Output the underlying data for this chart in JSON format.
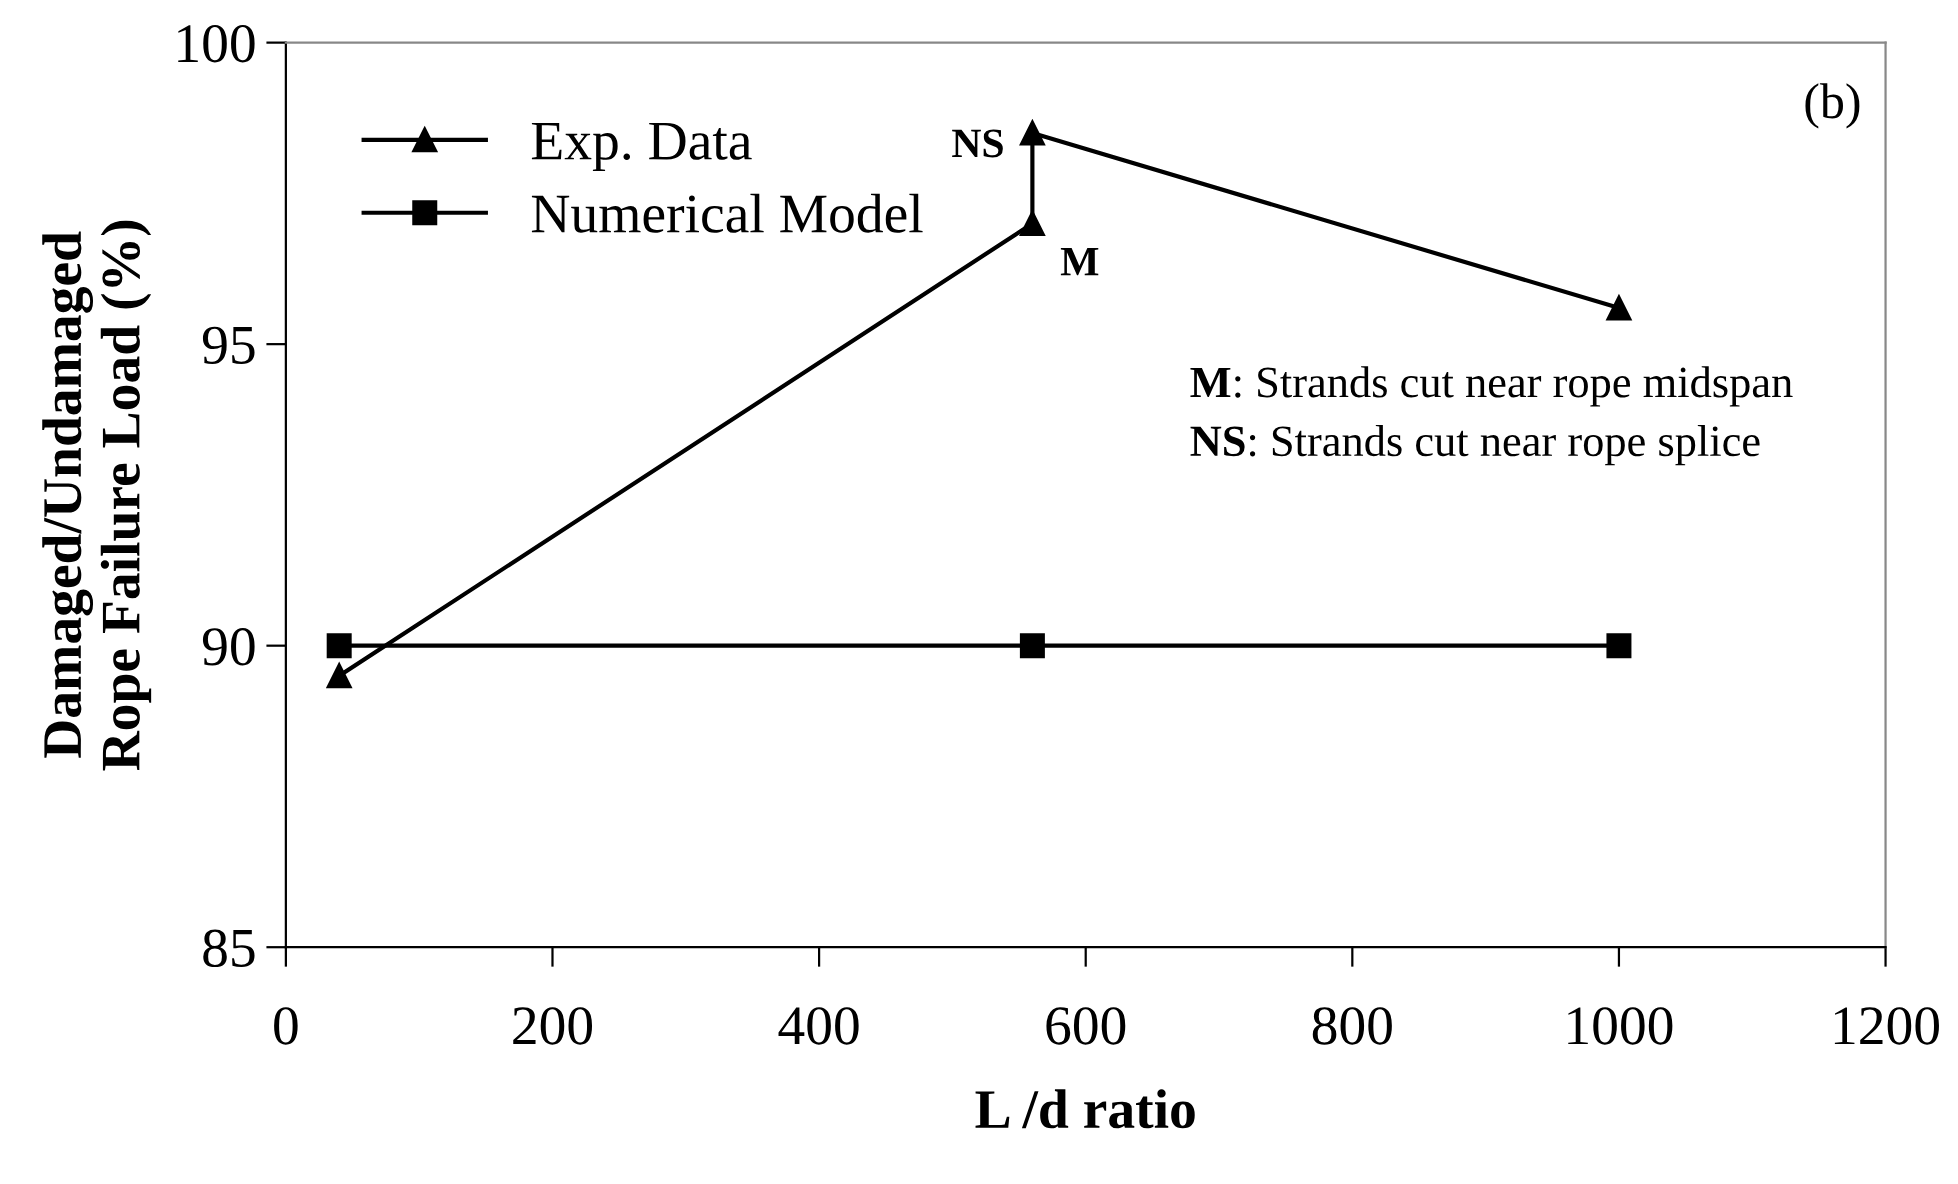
{
  "chart_data": {
    "type": "line",
    "xlabel": "L /d ratio",
    "ylabel": "Damaged/Undamaged\nRope Failure Load (%)",
    "xlim": [
      0,
      1200
    ],
    "xticks": [
      0,
      200,
      400,
      600,
      800,
      1000,
      1200
    ],
    "ylim": [
      85,
      100
    ],
    "yticks": [
      85,
      90,
      95,
      100
    ],
    "series": [
      {
        "name": "Exp. Data",
        "color": "#000000",
        "marker": "triangle",
        "x": [
          40,
          560,
          560,
          1000
        ],
        "values": [
          89.5,
          97.0,
          98.5,
          95.6
        ]
      },
      {
        "name": "Numerical Model",
        "color": "#000000",
        "marker": "square",
        "x": [
          40,
          560,
          1000
        ],
        "values": [
          90,
          90,
          90
        ]
      }
    ],
    "annotations": [
      {
        "text": "NS",
        "x": 560,
        "y": 98.5
      },
      {
        "text": "M",
        "x": 560,
        "y": 97.0
      },
      "(b)",
      "M: Strands cut near rope midspan",
      "NS: Strands cut near rope splice"
    ],
    "legend": "top left",
    "grid": false,
    "line_style": "solid"
  }
}
